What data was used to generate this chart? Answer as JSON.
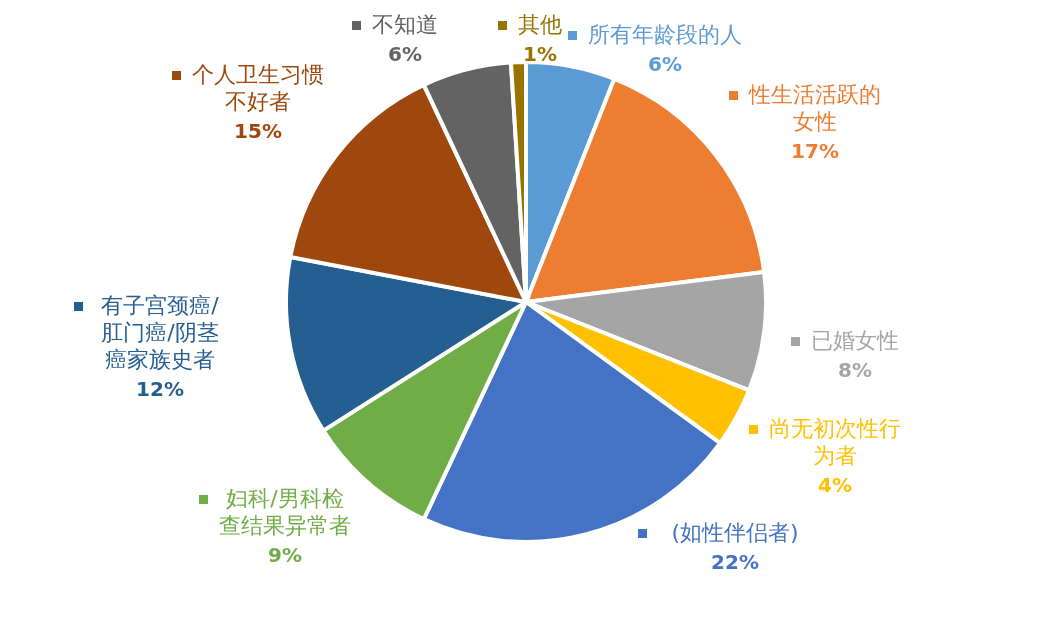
{
  "chart_data": {
    "type": "pie",
    "categories": [
      "所有年龄段的人",
      "性生活活跃的女性",
      "已婚女性",
      "尚无初次性行为者",
      "(如性伴侣者)",
      "妇科/男科检查结果异常者",
      "有子宫颈癌/肛门癌/阴茎癌家族史者",
      "个人卫生习惯不好者",
      "不知道",
      "其他"
    ],
    "values": [
      6,
      17,
      8,
      4,
      22,
      9,
      12,
      15,
      6,
      1
    ],
    "colors": [
      "#5b9bd5",
      "#ed7d31",
      "#a5a5a5",
      "#ffc000",
      "#4472c4",
      "#70ad47",
      "#255e91",
      "#9e480e",
      "#636363",
      "#997300"
    ],
    "value_labels": [
      "6%",
      "17%",
      "8%",
      "4%",
      "22%",
      "9%",
      "12%",
      "15%",
      "6%",
      "1%"
    ],
    "legend": "top left"
  }
}
